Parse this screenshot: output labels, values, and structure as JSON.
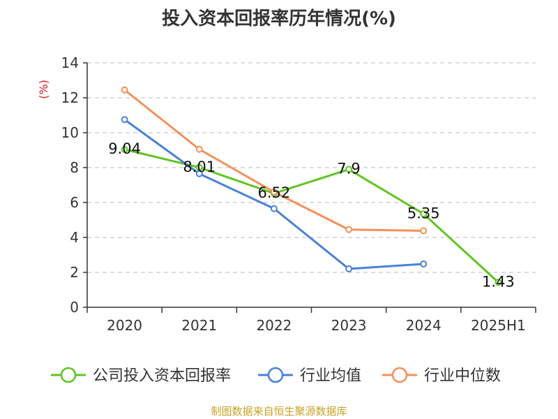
{
  "chart_data": {
    "type": "line",
    "title": "投入资本回报率历年情况(%)",
    "ylabel": "(%)",
    "categories": [
      "2020",
      "2021",
      "2022",
      "2023",
      "2024",
      "2025H1"
    ],
    "ylim": [
      0,
      14
    ],
    "yticks": [
      0,
      2,
      4,
      6,
      8,
      10,
      12,
      14
    ],
    "grid": true,
    "legend_position": "bottom",
    "series": [
      {
        "name": "公司投入资本回报率",
        "color": "#5dc520",
        "values": [
          9.04,
          8.01,
          6.52,
          7.9,
          5.35,
          1.43
        ],
        "labels": [
          "9.04",
          "8.01",
          "6.52",
          "7.9",
          "5.35",
          "1.43"
        ]
      },
      {
        "name": "行业均值",
        "color": "#4a80d8",
        "values": [
          10.75,
          7.65,
          5.65,
          2.2,
          2.48,
          null
        ]
      },
      {
        "name": "行业中位数",
        "color": "#f4905a",
        "values": [
          12.45,
          9.05,
          6.6,
          4.45,
          4.38,
          null
        ]
      }
    ]
  },
  "source_note": "制图数据来自恒生聚源数据库"
}
